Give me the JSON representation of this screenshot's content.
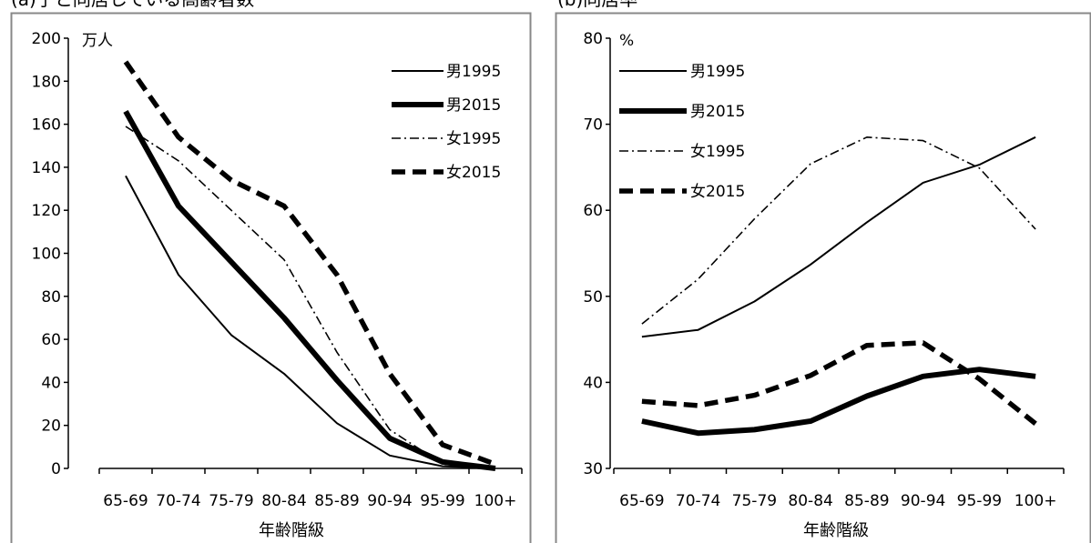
{
  "chart_data": [
    {
      "type": "line",
      "title": "(a)子と同居している高齢者数",
      "unit_label": "万人",
      "xlabel": "年齢階級",
      "ylabel": "",
      "categories": [
        "65-69",
        "70-74",
        "75-79",
        "80-84",
        "85-89",
        "90-94",
        "95-99",
        "100+"
      ],
      "ylim": [
        0,
        200
      ],
      "yticks": [
        0,
        20,
        40,
        60,
        80,
        100,
        120,
        140,
        160,
        180,
        200
      ],
      "legend_position": "top-right",
      "grid": false,
      "series": [
        {
          "name": "男1995",
          "style": "thin-solid",
          "values": [
            136,
            90,
            62,
            44,
            21,
            6,
            1,
            0
          ]
        },
        {
          "name": "男2015",
          "style": "thick-solid",
          "values": [
            166,
            122,
            96,
            70,
            41,
            14,
            3,
            0
          ]
        },
        {
          "name": "女1995",
          "style": "dash-dot",
          "values": [
            159,
            143,
            120,
            97,
            54,
            18,
            2,
            0
          ]
        },
        {
          "name": "女2015",
          "style": "thick-dash",
          "values": [
            189,
            154,
            134,
            122,
            90,
            44,
            11,
            2
          ]
        }
      ]
    },
    {
      "type": "line",
      "title": "(b)同居率",
      "unit_label": "%",
      "xlabel": "年齢階級",
      "ylabel": "",
      "categories": [
        "65-69",
        "70-74",
        "75-79",
        "80-84",
        "85-89",
        "90-94",
        "95-99",
        "100+"
      ],
      "ylim": [
        30,
        80
      ],
      "yticks": [
        30,
        40,
        50,
        60,
        70,
        80
      ],
      "legend_position": "top-left",
      "grid": false,
      "series": [
        {
          "name": "男1995",
          "style": "thin-solid",
          "values": [
            45.3,
            46.1,
            49.4,
            53.7,
            58.6,
            63.2,
            65.3,
            68.5
          ]
        },
        {
          "name": "男2015",
          "style": "thick-solid",
          "values": [
            35.5,
            34.1,
            34.5,
            35.5,
            38.4,
            40.7,
            41.5,
            40.7
          ]
        },
        {
          "name": "女1995",
          "style": "dash-dot",
          "values": [
            46.8,
            52.0,
            59.0,
            65.4,
            68.5,
            68.1,
            64.9,
            57.8
          ]
        },
        {
          "name": "女2015",
          "style": "thick-dash",
          "values": [
            37.8,
            37.3,
            38.5,
            40.8,
            44.3,
            44.6,
            40.4,
            35.2
          ]
        }
      ]
    }
  ]
}
